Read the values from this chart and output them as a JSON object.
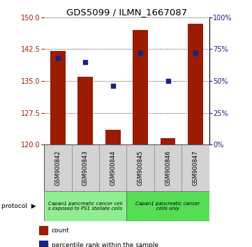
{
  "title": "GDS5099 / ILMN_1667087",
  "samples": [
    "GSM900842",
    "GSM900843",
    "GSM900844",
    "GSM900845",
    "GSM900846",
    "GSM900847"
  ],
  "count_values": [
    142.0,
    136.0,
    123.5,
    147.0,
    121.5,
    148.5
  ],
  "percentile_values": [
    68,
    65,
    46,
    72,
    50,
    72
  ],
  "ylim_left": [
    120,
    150
  ],
  "ylim_right": [
    0,
    100
  ],
  "yticks_left": [
    120,
    127.5,
    135,
    142.5,
    150
  ],
  "yticks_right": [
    0,
    25,
    50,
    75,
    100
  ],
  "bar_color": "#9B1C00",
  "dot_color": "#1A237E",
  "bar_bottom": 120,
  "group1_label": "Capan1 pancreatic cancer cell\ns exposed to PS1 stellate cells",
  "group1_color": "#90EE90",
  "group2_label": "Capan1 pancreatic cancer\ncells only",
  "group2_color": "#55DD55",
  "legend_items": [
    {
      "color": "#9B1C00",
      "label": "count"
    },
    {
      "color": "#1A237E",
      "label": "percentile rank within the sample"
    }
  ],
  "tick_label_fontsize": 7,
  "title_fontsize": 9.5,
  "bg_color": "#FFFFFF"
}
